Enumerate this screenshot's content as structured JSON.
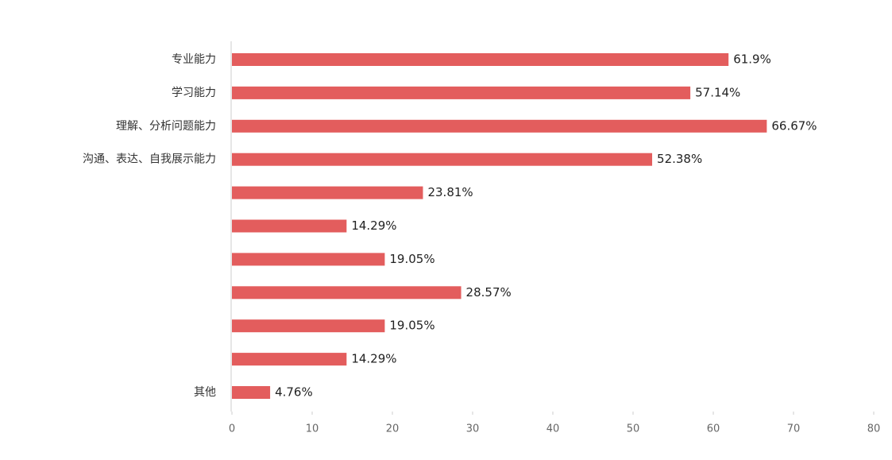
{
  "chart_data": {
    "type": "bar",
    "orientation": "horizontal",
    "categories": [
      "专业能力",
      "学习能力",
      "理解、分析问题能力",
      "沟通、表达、自我展示能力",
      null,
      null,
      null,
      null,
      null,
      null,
      "其他"
    ],
    "values": [
      61.9,
      57.14,
      66.67,
      52.38,
      23.81,
      14.29,
      19.05,
      28.57,
      19.05,
      14.29,
      4.76
    ],
    "value_labels": [
      "61.9%",
      "57.14%",
      "66.67%",
      "52.38%",
      "23.81%",
      "14.29%",
      "19.05%",
      "28.57%",
      "19.05%",
      "14.29%",
      "4.76%"
    ],
    "color": "#e35d5d",
    "xlim": [
      0,
      80
    ],
    "xticks": [
      0,
      10,
      20,
      30,
      40,
      50,
      60,
      70,
      80
    ]
  }
}
